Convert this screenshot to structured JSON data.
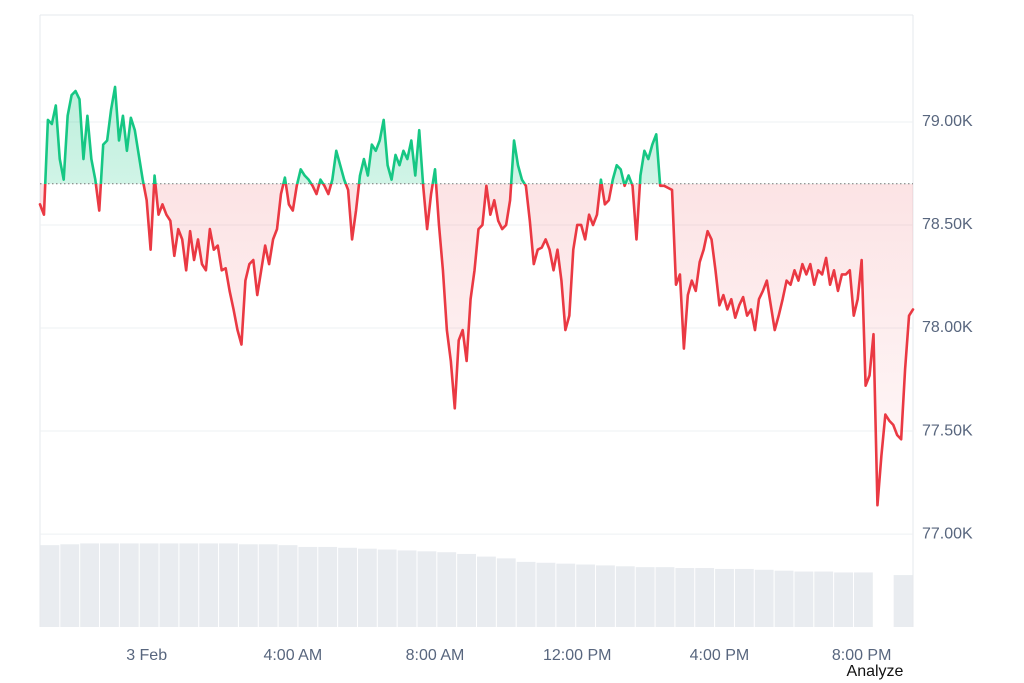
{
  "chart_data": {
    "type": "line",
    "categories": [
      null,
      null,
      null,
      null,
      null,
      null,
      null,
      null,
      null,
      null,
      null,
      null,
      null,
      null,
      null,
      null,
      null,
      null,
      null,
      null,
      null,
      null,
      null,
      null,
      null,
      null,
      null,
      "3 Feb",
      null,
      null,
      null,
      null,
      null,
      null,
      null,
      null,
      null,
      null,
      null,
      null,
      null,
      null,
      null,
      null,
      null,
      null,
      null,
      null,
      null,
      null,
      null,
      null,
      null,
      null,
      null,
      null,
      null,
      null,
      null,
      null,
      null,
      null,
      null,
      null,
      "4:00 AM",
      null,
      null,
      null,
      null,
      null,
      null,
      null,
      null,
      null,
      null,
      null,
      null,
      null,
      null,
      null,
      null,
      null,
      null,
      null,
      null,
      null,
      null,
      null,
      null,
      null,
      null,
      null,
      null,
      null,
      null,
      null,
      null,
      null,
      null,
      null,
      "8:00 AM",
      null,
      null,
      null,
      null,
      null,
      null,
      null,
      null,
      null,
      null,
      null,
      null,
      null,
      null,
      null,
      null,
      null,
      null,
      null,
      null,
      null,
      null,
      null,
      null,
      null,
      null,
      null,
      null,
      null,
      null,
      null,
      null,
      null,
      null,
      null,
      "12:00 PM",
      null,
      null,
      null,
      null,
      null,
      null,
      null,
      null,
      null,
      null,
      null,
      null,
      null,
      null,
      null,
      null,
      null,
      null,
      null,
      null,
      null,
      null,
      null,
      null,
      null,
      null,
      null,
      null,
      null,
      null,
      null,
      null,
      null,
      null,
      null,
      "4:00 PM",
      null,
      null,
      null,
      null,
      null,
      null,
      null,
      null,
      null,
      null,
      null,
      null,
      null,
      null,
      null,
      null,
      null,
      null,
      null,
      null,
      null,
      null,
      null,
      null,
      null,
      null,
      null,
      null,
      null,
      null,
      null,
      null,
      null,
      null,
      null,
      "8:00 PM",
      null,
      null,
      null,
      null,
      null,
      null,
      null,
      null,
      null,
      null,
      null,
      null,
      null
    ],
    "values": [
      78.6,
      78.55,
      79.01,
      78.99,
      79.08,
      78.82,
      78.72,
      79.03,
      79.13,
      79.15,
      79.11,
      78.82,
      79.03,
      78.82,
      78.72,
      78.57,
      78.89,
      78.91,
      79.06,
      79.17,
      78.91,
      79.03,
      78.86,
      79.02,
      78.96,
      78.84,
      78.72,
      78.62,
      78.38,
      78.74,
      78.55,
      78.6,
      78.55,
      78.52,
      78.35,
      78.48,
      78.43,
      78.28,
      78.47,
      78.33,
      78.43,
      78.31,
      78.28,
      78.48,
      78.38,
      78.4,
      78.28,
      78.29,
      78.18,
      78.09,
      77.99,
      77.92,
      78.23,
      78.31,
      78.33,
      78.16,
      78.28,
      78.4,
      78.31,
      78.43,
      78.48,
      78.65,
      78.73,
      78.6,
      78.57,
      78.69,
      78.77,
      78.74,
      78.72,
      78.69,
      78.65,
      78.72,
      78.69,
      78.65,
      78.72,
      78.86,
      78.79,
      78.72,
      78.67,
      78.43,
      78.57,
      78.74,
      78.82,
      78.74,
      78.89,
      78.86,
      78.91,
      79.01,
      78.79,
      78.72,
      78.84,
      78.79,
      78.86,
      78.82,
      78.91,
      78.74,
      78.96,
      78.69,
      78.48,
      78.65,
      78.77,
      78.5,
      78.28,
      77.99,
      77.84,
      77.61,
      77.94,
      77.99,
      77.84,
      78.14,
      78.28,
      78.48,
      78.5,
      78.69,
      78.55,
      78.62,
      78.52,
      78.48,
      78.5,
      78.62,
      78.91,
      78.79,
      78.72,
      78.69,
      78.52,
      78.31,
      78.38,
      78.39,
      78.43,
      78.38,
      78.28,
      78.38,
      78.23,
      77.99,
      78.06,
      78.38,
      78.5,
      78.5,
      78.43,
      78.55,
      78.5,
      78.55,
      78.72,
      78.6,
      78.62,
      78.72,
      78.79,
      78.77,
      78.69,
      78.74,
      78.69,
      78.43,
      78.74,
      78.86,
      78.82,
      78.89,
      78.94,
      78.69,
      78.69,
      78.68,
      78.67,
      78.21,
      78.26,
      77.9,
      78.16,
      78.23,
      78.18,
      78.32,
      78.38,
      78.47,
      78.43,
      78.28,
      78.11,
      78.16,
      78.09,
      78.14,
      78.05,
      78.11,
      78.15,
      78.06,
      78.09,
      77.99,
      78.14,
      78.18,
      78.23,
      78.11,
      77.99,
      78.06,
      78.14,
      78.23,
      78.21,
      78.28,
      78.23,
      78.31,
      78.26,
      78.31,
      78.21,
      78.28,
      78.26,
      78.34,
      78.21,
      78.28,
      78.18,
      78.26,
      78.26,
      78.28,
      78.06,
      78.14,
      78.33,
      77.72,
      77.77,
      77.97,
      77.14,
      77.38,
      77.58,
      77.55,
      77.53,
      77.48,
      77.46,
      77.8,
      78.06,
      78.09
    ],
    "baseline": 78.7,
    "up_color": "#16c784",
    "down_color": "#ea3943",
    "ylim": [
      76.549,
      79.519
    ],
    "yticks": [
      {
        "value": 77.0,
        "label": "77.00K"
      },
      {
        "value": 77.5,
        "label": "77.50K"
      },
      {
        "value": 78.0,
        "label": "78.00K"
      },
      {
        "value": 78.5,
        "label": "78.50K"
      },
      {
        "value": 79.0,
        "label": "79.00K"
      }
    ],
    "grid": true,
    "volume": {
      "color": "#e9ecf0",
      "ylim": [
        0,
        100
      ],
      "values": [
        93,
        94,
        95,
        95,
        95,
        95,
        95,
        95,
        95,
        95,
        94,
        94,
        93,
        91,
        91,
        90,
        89,
        88,
        87,
        86,
        85,
        83,
        80,
        78,
        74,
        73,
        72,
        71,
        70,
        69,
        68,
        68,
        67,
        67,
        66,
        66,
        65,
        64,
        63,
        63,
        62,
        62,
        null,
        59
      ]
    }
  },
  "ui": {
    "button": "Analyze"
  }
}
